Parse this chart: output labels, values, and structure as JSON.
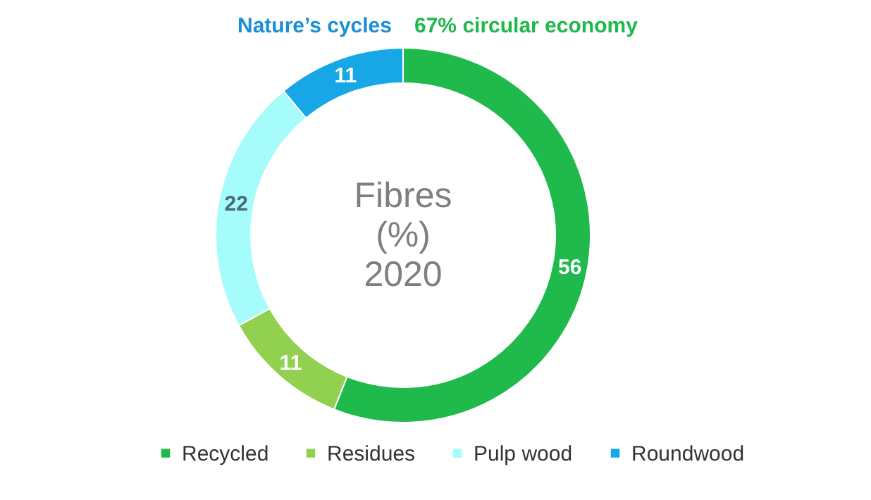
{
  "chart_data": {
    "type": "donut",
    "title": "Fibres (%) 2020",
    "categories": [
      "Recycled",
      "Residues",
      "Pulp wood",
      "Roundwood"
    ],
    "values": [
      56,
      11,
      22,
      11
    ],
    "colors": [
      "#20b94b",
      "#92d050",
      "#a6fbfb",
      "#17a6e6"
    ],
    "data_labels": true,
    "legend": "bottom",
    "annotations": [
      "Nature’s cycles",
      "67% circular economy"
    ]
  }
}
